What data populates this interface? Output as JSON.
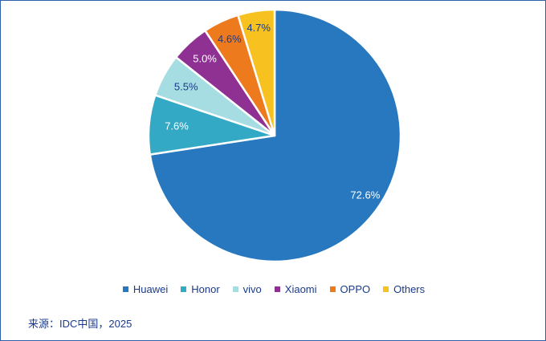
{
  "chart_data": {
    "type": "pie",
    "categories": [
      "Huawei",
      "Honor",
      "vivo",
      "Xiaomi",
      "OPPO",
      "Others"
    ],
    "values": [
      72.6,
      7.6,
      5.5,
      5.0,
      4.6,
      4.7
    ],
    "labels": [
      "72.6%",
      "7.6%",
      "5.5%",
      "5.0%",
      "4.6%",
      "4.7%"
    ],
    "colors": [
      "#2878c0",
      "#34a9c5",
      "#a6dde3",
      "#8e3192",
      "#ee7a1e",
      "#f7c21f"
    ],
    "label_colors": [
      "#ffffff",
      "#ffffff",
      "#1a3a8a",
      "#ffffff",
      "#1a3a8a",
      "#1a3a8a"
    ],
    "start_angle_deg": 0,
    "direction": "clockwise",
    "legend_position": "bottom"
  },
  "source_note": "来源：IDC中国，2025"
}
